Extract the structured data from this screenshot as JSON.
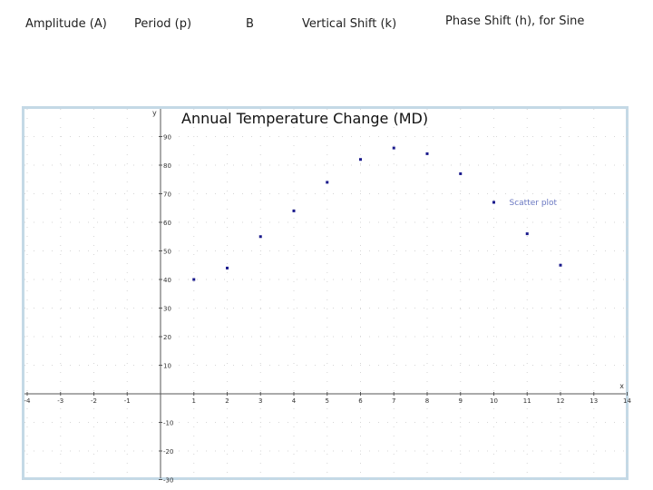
{
  "header": {
    "amplitude_label": "Amplitude (A)",
    "period_label": "Period (p)",
    "b_label": "B",
    "vertical_shift_label": "Vertical Shift (k)",
    "phase_shift_label": "Phase Shift (h), for Sine"
  },
  "chart_data": {
    "type": "scatter",
    "title": "Annual Temperature Change (MD)",
    "xlabel": "x",
    "ylabel": "y",
    "xlim": [
      -4,
      14
    ],
    "ylim": [
      -36,
      95
    ],
    "x_ticks": [
      "-4",
      "-3",
      "-2",
      "-1",
      "1",
      "2",
      "3",
      "4",
      "5",
      "6",
      "7",
      "8",
      "9",
      "10",
      "11",
      "12",
      "13",
      "14"
    ],
    "y_ticks": [
      "90",
      "80",
      "70",
      "60",
      "50",
      "40",
      "30",
      "20",
      "10",
      "-10",
      "-20",
      "-30"
    ],
    "grid": true,
    "legend": "right",
    "series": [
      {
        "name": "Scatter plot",
        "color": "#1a1a8c",
        "x": [
          1,
          2,
          3,
          4,
          5,
          6,
          7,
          8,
          9,
          10,
          11,
          12
        ],
        "y": [
          40,
          44,
          55,
          64,
          74,
          82,
          86,
          84,
          77,
          67,
          56,
          45
        ]
      }
    ]
  }
}
